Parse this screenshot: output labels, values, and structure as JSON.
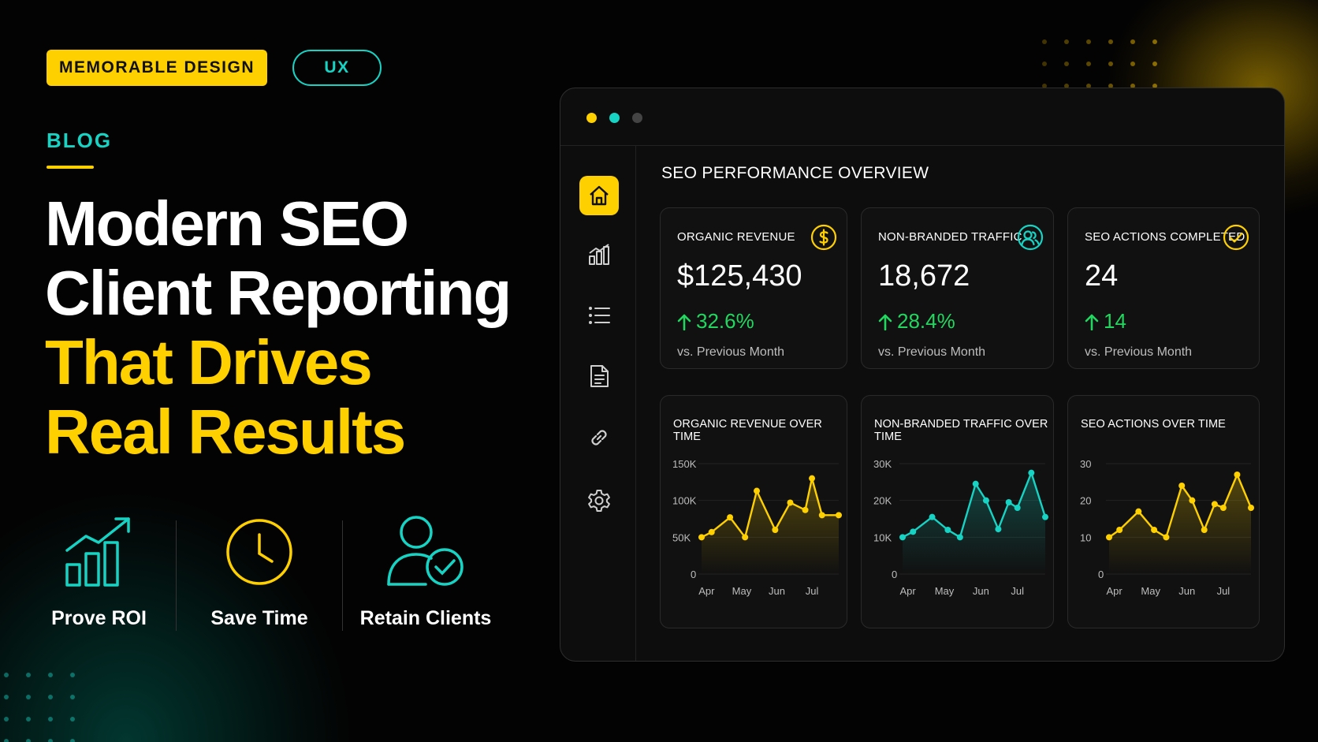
{
  "tags": {
    "primary": "MEMORABLE DESIGN",
    "secondary": "UX"
  },
  "blog_label": "BLOG",
  "headline": {
    "white_lines": [
      "Modern SEO",
      "Client Reporting"
    ],
    "yellow_lines": [
      "That Drives",
      "Real Results"
    ]
  },
  "benefits": [
    {
      "label": "Prove ROI",
      "icon": "bar-chart-growth-icon"
    },
    {
      "label": "Save Time",
      "icon": "clock-icon"
    },
    {
      "label": "Retain Clients",
      "icon": "user-check-icon"
    }
  ],
  "colors": {
    "accent_yellow": "#ffd000",
    "accent_teal": "#17d3c4",
    "positive_green": "#22d760",
    "background": "#030303"
  },
  "window": {
    "controls": [
      "yellow-dot",
      "teal-dot",
      "gray-dot"
    ]
  },
  "sidebar": {
    "items": [
      {
        "icon": "home-icon",
        "active": true
      },
      {
        "icon": "analytics-icon",
        "active": false
      },
      {
        "icon": "list-icon",
        "active": false
      },
      {
        "icon": "document-icon",
        "active": false
      },
      {
        "icon": "link-icon",
        "active": false
      },
      {
        "icon": "settings-icon",
        "active": false
      }
    ]
  },
  "dashboard": {
    "title": "SEO PERFORMANCE OVERVIEW",
    "kpis": [
      {
        "title": "ORGANIC REVENUE",
        "value": "$125,430",
        "delta": "32.6%",
        "subtitle": "vs. Previous Month",
        "icon": "dollar-icon"
      },
      {
        "title": "NON-BRANDED TRAFFIC",
        "value": "18,672",
        "delta": "28.4%",
        "subtitle": "vs. Previous Month",
        "icon": "users-icon"
      },
      {
        "title": "SEO ACTIONS COMPLETED",
        "value": "24",
        "delta": "14",
        "subtitle": "vs. Previous Month",
        "icon": "check-circle-icon"
      }
    ]
  },
  "chart_data": [
    {
      "type": "line",
      "title": "ORGANIC REVENUE OVER TIME",
      "x_ticks": [
        "Apr",
        "May",
        "Jun",
        "Jul"
      ],
      "y_ticks": [
        "150K",
        "100K",
        "50K",
        "0"
      ],
      "ylim": [
        0,
        150000
      ],
      "color": "#ffd000",
      "x": [
        0,
        0.3,
        0.85,
        1.3,
        1.65,
        2.2,
        2.65,
        3.1,
        3.3,
        3.6,
        4.1
      ],
      "values": [
        50000,
        57000,
        77000,
        50000,
        113000,
        60000,
        97000,
        87000,
        130000,
        80000,
        80000
      ]
    },
    {
      "type": "line",
      "title": "NON-BRANDED TRAFFIC OVER TIME",
      "x_ticks": [
        "Apr",
        "May",
        "Jun",
        "Jul"
      ],
      "y_ticks": [
        "30K",
        "20K",
        "10K",
        "0"
      ],
      "ylim": [
        0,
        30000
      ],
      "color": "#17d3c4",
      "x": [
        0,
        0.3,
        0.85,
        1.3,
        1.65,
        2.1,
        2.4,
        2.75,
        3.05,
        3.3,
        3.7,
        4.1
      ],
      "values": [
        10000,
        11500,
        15500,
        12000,
        10000,
        24500,
        20000,
        12200,
        19500,
        18000,
        27500,
        15500
      ]
    },
    {
      "type": "line",
      "title": "SEO ACTIONS OVER TIME",
      "x_ticks": [
        "Apr",
        "May",
        "Jun",
        "Jul"
      ],
      "y_ticks": [
        "30",
        "20",
        "10",
        "0"
      ],
      "ylim": [
        0,
        30
      ],
      "color": "#ffd000",
      "x": [
        0,
        0.3,
        0.85,
        1.3,
        1.65,
        2.1,
        2.4,
        2.75,
        3.05,
        3.3,
        3.7,
        4.1
      ],
      "values": [
        10,
        12,
        17,
        12,
        10,
        24,
        20,
        12,
        19,
        18,
        27,
        18
      ]
    }
  ]
}
